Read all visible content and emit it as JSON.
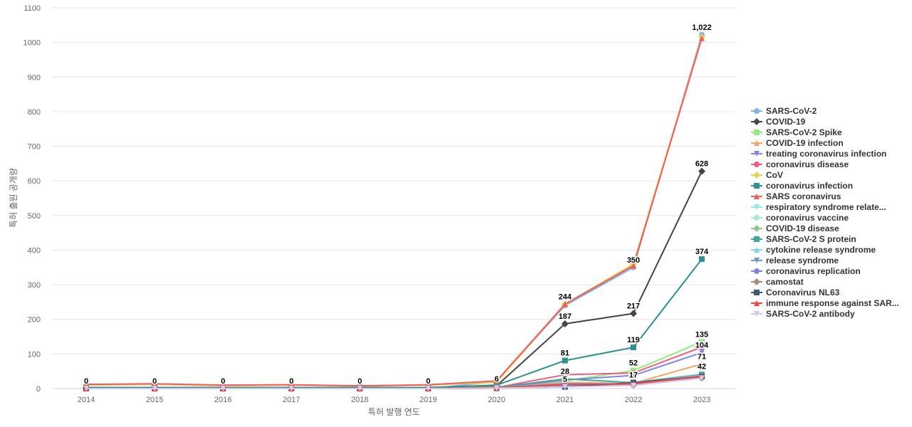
{
  "chart_data": {
    "type": "line",
    "title": "",
    "xlabel": "특허 발행 연도",
    "ylabel": "특허 출원 공개량",
    "ylim": [
      0,
      1100
    ],
    "yticks": [
      0,
      100,
      200,
      300,
      400,
      500,
      600,
      700,
      800,
      900,
      1000,
      1100
    ],
    "x": [
      "2014",
      "2015",
      "2016",
      "2017",
      "2018",
      "2019",
      "2020",
      "2021",
      "2022",
      "2023"
    ],
    "grid": true,
    "legend": "right",
    "series": [
      {
        "name": "SARS-CoV-2",
        "color": "#7cb5ec",
        "marker": "circle",
        "values": [
          0,
          0,
          0,
          0,
          0,
          0,
          20,
          240,
          350,
          1022
        ]
      },
      {
        "name": "COVID-19",
        "color": "#434348",
        "marker": "diamond",
        "values": [
          3,
          3,
          3,
          3,
          3,
          3,
          8,
          187,
          217,
          628
        ]
      },
      {
        "name": "SARS-CoV-2 Spike",
        "color": "#90ed7d",
        "marker": "square",
        "values": [
          0,
          0,
          0,
          0,
          0,
          0,
          3,
          22,
          52,
          135
        ]
      },
      {
        "name": "COVID-19 infection",
        "color": "#f7a35c",
        "marker": "triangle",
        "values": [
          0,
          0,
          0,
          0,
          0,
          0,
          5,
          18,
          15,
          71
        ]
      },
      {
        "name": "treating coronavirus infection",
        "color": "#8085e9",
        "marker": "triangle-down",
        "values": [
          0,
          0,
          0,
          0,
          0,
          0,
          2,
          25,
          38,
          104
        ]
      },
      {
        "name": "coronavirus disease",
        "color": "#f15c80",
        "marker": "circle",
        "values": [
          0,
          0,
          0,
          0,
          0,
          0,
          3,
          40,
          45,
          120
        ]
      },
      {
        "name": "CoV",
        "color": "#e4d354",
        "marker": "diamond",
        "values": [
          10,
          12,
          8,
          10,
          7,
          10,
          18,
          244,
          360,
          1015
        ]
      },
      {
        "name": "coronavirus infection",
        "color": "#2b908f",
        "marker": "square",
        "values": [
          3,
          3,
          3,
          3,
          3,
          3,
          10,
          81,
          119,
          374
        ]
      },
      {
        "name": "SARS coronavirus",
        "color": "#f45b5b",
        "marker": "triangle",
        "values": [
          12,
          14,
          10,
          11,
          8,
          11,
          22,
          244,
          355,
          1012
        ]
      },
      {
        "name": "respiratory syndrome relate...",
        "color": "#91e8e1",
        "marker": "triangle-down",
        "values": [
          0,
          0,
          0,
          0,
          0,
          0,
          2,
          12,
          18,
          42
        ]
      },
      {
        "name": "coronavirus vaccine",
        "color": "#a8e6cf",
        "marker": "circle",
        "values": [
          0,
          0,
          0,
          0,
          0,
          0,
          2,
          10,
          15,
          35
        ]
      },
      {
        "name": "COVID-19 disease",
        "color": "#8fc98f",
        "marker": "diamond",
        "values": [
          0,
          0,
          0,
          0,
          0,
          0,
          2,
          10,
          14,
          33
        ]
      },
      {
        "name": "SARS-CoV-2 S protein",
        "color": "#3fa796",
        "marker": "square",
        "values": [
          0,
          0,
          0,
          0,
          0,
          0,
          3,
          28,
          17,
          40
        ]
      },
      {
        "name": "cytokine release syndrome",
        "color": "#7dd3e8",
        "marker": "triangle",
        "values": [
          0,
          0,
          0,
          0,
          0,
          0,
          2,
          15,
          14,
          38
        ]
      },
      {
        "name": "release syndrome",
        "color": "#6c9bd2",
        "marker": "triangle-down",
        "values": [
          0,
          0,
          0,
          0,
          0,
          0,
          2,
          14,
          13,
          36
        ]
      },
      {
        "name": "coronavirus replication",
        "color": "#7b86e0",
        "marker": "circle",
        "values": [
          0,
          0,
          0,
          0,
          0,
          0,
          2,
          8,
          12,
          32
        ]
      },
      {
        "name": "camostat",
        "color": "#a98e7a",
        "marker": "diamond",
        "values": [
          0,
          0,
          0,
          0,
          0,
          0,
          1,
          6,
          10,
          30
        ]
      },
      {
        "name": "Coronavirus NL63",
        "color": "#3d5a73",
        "marker": "square",
        "values": [
          0,
          0,
          0,
          0,
          0,
          0,
          1,
          5,
          17,
          35
        ]
      },
      {
        "name": "immune response against SAR...",
        "color": "#ff4040",
        "marker": "triangle",
        "values": [
          0,
          0,
          0,
          0,
          0,
          0,
          2,
          12,
          14,
          36
        ]
      },
      {
        "name": "SARS-CoV-2 antibody",
        "color": "#d8c8e8",
        "marker": "triangle-down",
        "values": [
          0,
          0,
          0,
          0,
          0,
          0,
          1,
          5,
          9,
          30
        ]
      }
    ],
    "data_labels": [
      {
        "x": "2014",
        "text": "0",
        "value": 0
      },
      {
        "x": "2015",
        "text": "0",
        "value": 0
      },
      {
        "x": "2016",
        "text": "0",
        "value": 0
      },
      {
        "x": "2017",
        "text": "0",
        "value": 0
      },
      {
        "x": "2018",
        "text": "0",
        "value": 0
      },
      {
        "x": "2019",
        "text": "0",
        "value": 0
      },
      {
        "x": "2020",
        "text": "6",
        "value": 6
      },
      {
        "x": "2021",
        "text": "244",
        "value": 244
      },
      {
        "x": "2021",
        "text": "187",
        "value": 187
      },
      {
        "x": "2021",
        "text": "81",
        "value": 81
      },
      {
        "x": "2021",
        "text": "28",
        "value": 28
      },
      {
        "x": "2021",
        "text": "5",
        "value": 5
      },
      {
        "x": "2022",
        "text": "350",
        "value": 350
      },
      {
        "x": "2022",
        "text": "217",
        "value": 217
      },
      {
        "x": "2022",
        "text": "119",
        "value": 119
      },
      {
        "x": "2022",
        "text": "52",
        "value": 52
      },
      {
        "x": "2022",
        "text": "17",
        "value": 17
      },
      {
        "x": "2023",
        "text": "1,022",
        "value": 1022
      },
      {
        "x": "2023",
        "text": "628",
        "value": 628
      },
      {
        "x": "2023",
        "text": "374",
        "value": 374
      },
      {
        "x": "2023",
        "text": "135",
        "value": 135
      },
      {
        "x": "2023",
        "text": "104",
        "value": 104
      },
      {
        "x": "2023",
        "text": "71",
        "value": 71
      },
      {
        "x": "2023",
        "text": "42",
        "value": 42
      }
    ]
  }
}
